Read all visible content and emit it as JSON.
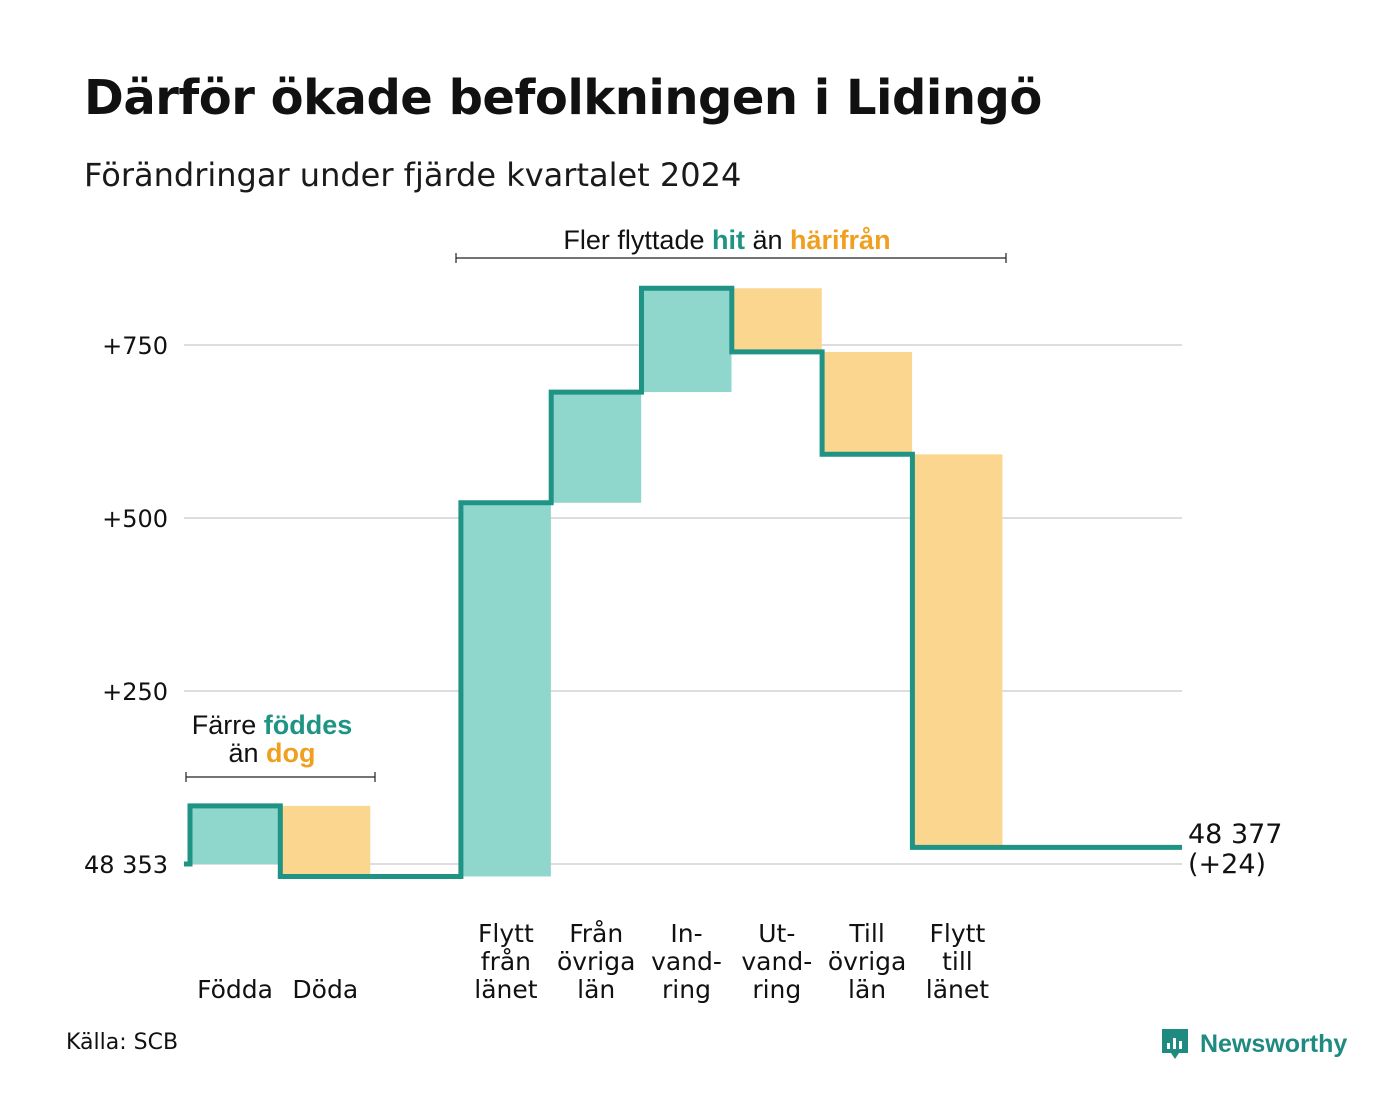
{
  "title": "Därför ökade befolkningen i Lidingö",
  "subtitle": "Förändringar under fjärde kvartalet 2024",
  "source": "Källa: SCB",
  "brand": "Newsworthy",
  "colors": {
    "line": "#1f9384",
    "increase": "#8fd6cc",
    "decrease": "#fbd68e",
    "increase_text": "#1f9384",
    "decrease_text": "#f0a020",
    "grid": "#dddddd"
  },
  "annotations": {
    "births": {
      "prefix": "Färre ",
      "highlight1": "föddes",
      "mid": "än ",
      "highlight2": "dog"
    },
    "moves": {
      "prefix": "Fler flyttade ",
      "highlight1": "hit",
      "mid": " än ",
      "highlight2": "härifrån"
    }
  },
  "chart_data": {
    "type": "waterfall",
    "title": "Därför ökade befolkningen i Lidingö",
    "subtitle": "Förändringar under fjärde kvartalet 2024",
    "baseline_label": "48 353",
    "baseline_value": 48353,
    "end_label": [
      "48 377",
      "(+24)"
    ],
    "end_value": 48377,
    "net_change": 24,
    "yticks": [
      {
        "value": 0,
        "label": "48 353"
      },
      {
        "value": 250,
        "label": "+250"
      },
      {
        "value": 500,
        "label": "+500"
      },
      {
        "value": 750,
        "label": "+750"
      }
    ],
    "ylim": [
      -50,
      880
    ],
    "categories": [
      {
        "label": [
          "Födda"
        ],
        "change": 84,
        "kind": "increase"
      },
      {
        "label": [
          "Döda"
        ],
        "change": -102,
        "kind": "decrease"
      },
      {
        "label": [],
        "change": 0,
        "kind": "gap"
      },
      {
        "label": [
          "Flytt",
          "från",
          "länet"
        ],
        "change": 540,
        "kind": "increase"
      },
      {
        "label": [
          "Från",
          "övriga",
          "län"
        ],
        "change": 160,
        "kind": "increase"
      },
      {
        "label": [
          "In-",
          "vand-",
          "ring"
        ],
        "change": 150,
        "kind": "increase"
      },
      {
        "label": [
          "Ut-",
          "vand-",
          "ring"
        ],
        "change": -92,
        "kind": "decrease"
      },
      {
        "label": [
          "Till",
          "övriga",
          "län"
        ],
        "change": -148,
        "kind": "decrease"
      },
      {
        "label": [
          "Flytt",
          "till",
          "länet"
        ],
        "change": -568,
        "kind": "decrease"
      }
    ]
  }
}
